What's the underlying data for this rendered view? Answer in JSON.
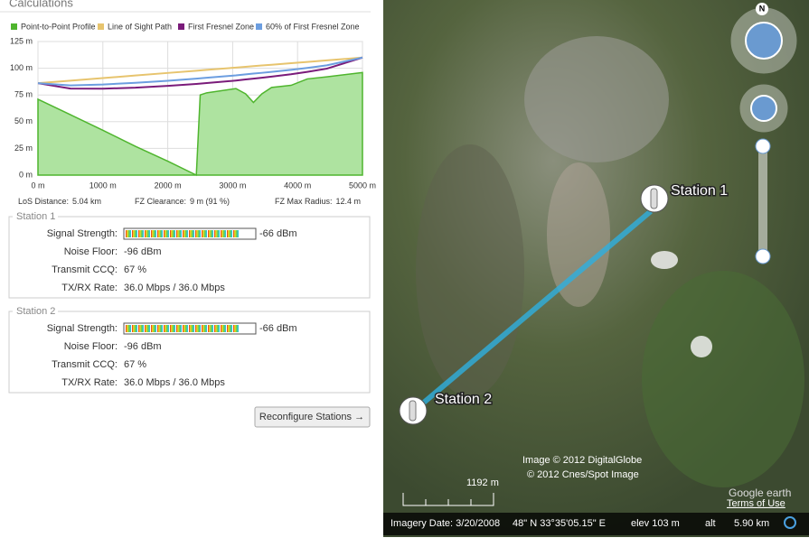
{
  "header": {
    "title": "Calculations"
  },
  "chart": {
    "type": "area",
    "x": [
      0,
      500,
      1000,
      1500,
      2000,
      2440,
      2500,
      2600,
      3050,
      3200,
      3320,
      3450,
      3600,
      3900,
      4150,
      4450,
      5000
    ],
    "series": [
      {
        "name": "Point-to-Point Profile",
        "color": "#4fb52e",
        "fill": "#aee3a0",
        "values": [
          71,
          56.5,
          42,
          27,
          13,
          0,
          75,
          77,
          81,
          76,
          68,
          76,
          82,
          84,
          90,
          92,
          96
        ]
      },
      {
        "name": "Line of Sight Path",
        "color": "#e7c46e",
        "values": [
          86,
          88.4,
          90.8,
          93.2,
          95.6,
          97.7,
          98,
          98.5,
          100.6,
          101.4,
          102,
          102.6,
          103.3,
          104.7,
          105.9,
          107.4,
          110
        ]
      },
      {
        "name": "First Fresnel Zone",
        "color": "#7a1b7a",
        "values": [
          86,
          81,
          80.9,
          81.8,
          83.5,
          85.3,
          85.6,
          86.1,
          88.5,
          89.5,
          90.3,
          91.1,
          92.2,
          94.4,
          96.6,
          99.6,
          110
        ]
      },
      {
        "name": "60% of First Fresnel Zone",
        "color": "#6c9ee0",
        "values": [
          86,
          83.9,
          84.8,
          86.4,
          88.3,
          90.3,
          90.6,
          91.1,
          93.3,
          94.3,
          95,
          95.7,
          96.6,
          98.5,
          100.3,
          102.7,
          110
        ]
      }
    ],
    "xlim": [
      0,
      5000
    ],
    "xticks": [
      {
        "value": 0,
        "label": "0 m"
      },
      {
        "value": 1000,
        "label": "1000 m"
      },
      {
        "value": 2000,
        "label": "2000 m"
      },
      {
        "value": 3000,
        "label": "3000 m"
      },
      {
        "value": 4000,
        "label": "4000 m"
      },
      {
        "value": 5000,
        "label": "5000 m"
      }
    ],
    "ylim": [
      0,
      125
    ],
    "yticks": [
      {
        "value": 0,
        "label": "0 m"
      },
      {
        "value": 25,
        "label": "25 m"
      },
      {
        "value": 50,
        "label": "50 m"
      },
      {
        "value": 75,
        "label": "75 m"
      },
      {
        "value": 100,
        "label": "100 m"
      },
      {
        "value": 125,
        "label": "125 m"
      }
    ],
    "grid": true
  },
  "summary": [
    {
      "label": "LoS Distance:",
      "value": "5.04 km"
    },
    {
      "label": "FZ Clearance:",
      "value": "9 m  (91 %)"
    },
    {
      "label": "FZ Max Radius:",
      "value": "12.4 m"
    }
  ],
  "stations": [
    {
      "title": "Station 1",
      "rows": [
        [
          "Signal Strength:",
          "-66 dBm"
        ],
        [
          "Noise Floor:",
          "-96 dBm"
        ],
        [
          "Transmit CCQ:",
          "67 %"
        ],
        [
          "TX/RX Rate:",
          "36.0 Mbps / 36.0 Mbps"
        ]
      ]
    },
    {
      "title": "Station 2",
      "rows": [
        [
          "Signal Strength:",
          "-66 dBm"
        ],
        [
          "Noise Floor:",
          "-96 dBm"
        ],
        [
          "Transmit CCQ:",
          "67 %"
        ],
        [
          "TX/RX Rate:",
          "36.0 Mbps / 36.0 Mbps"
        ]
      ]
    }
  ],
  "button": "Reconfigure Stations →",
  "map": {
    "compass": "N",
    "stations": [
      "Station 1",
      "Station 2"
    ],
    "credits": [
      "Image © 2012 DigitalGlobe",
      "© 2012 Cnes/Spot Image"
    ],
    "scale": "1192 m",
    "logo": "Google earth",
    "terms": "Terms of Use",
    "status": [
      "Imagery Date: 3/20/2008",
      "48\" N  33°35'05.15\" E",
      "elev  103 m",
      "alt",
      "5.90 km"
    ]
  }
}
